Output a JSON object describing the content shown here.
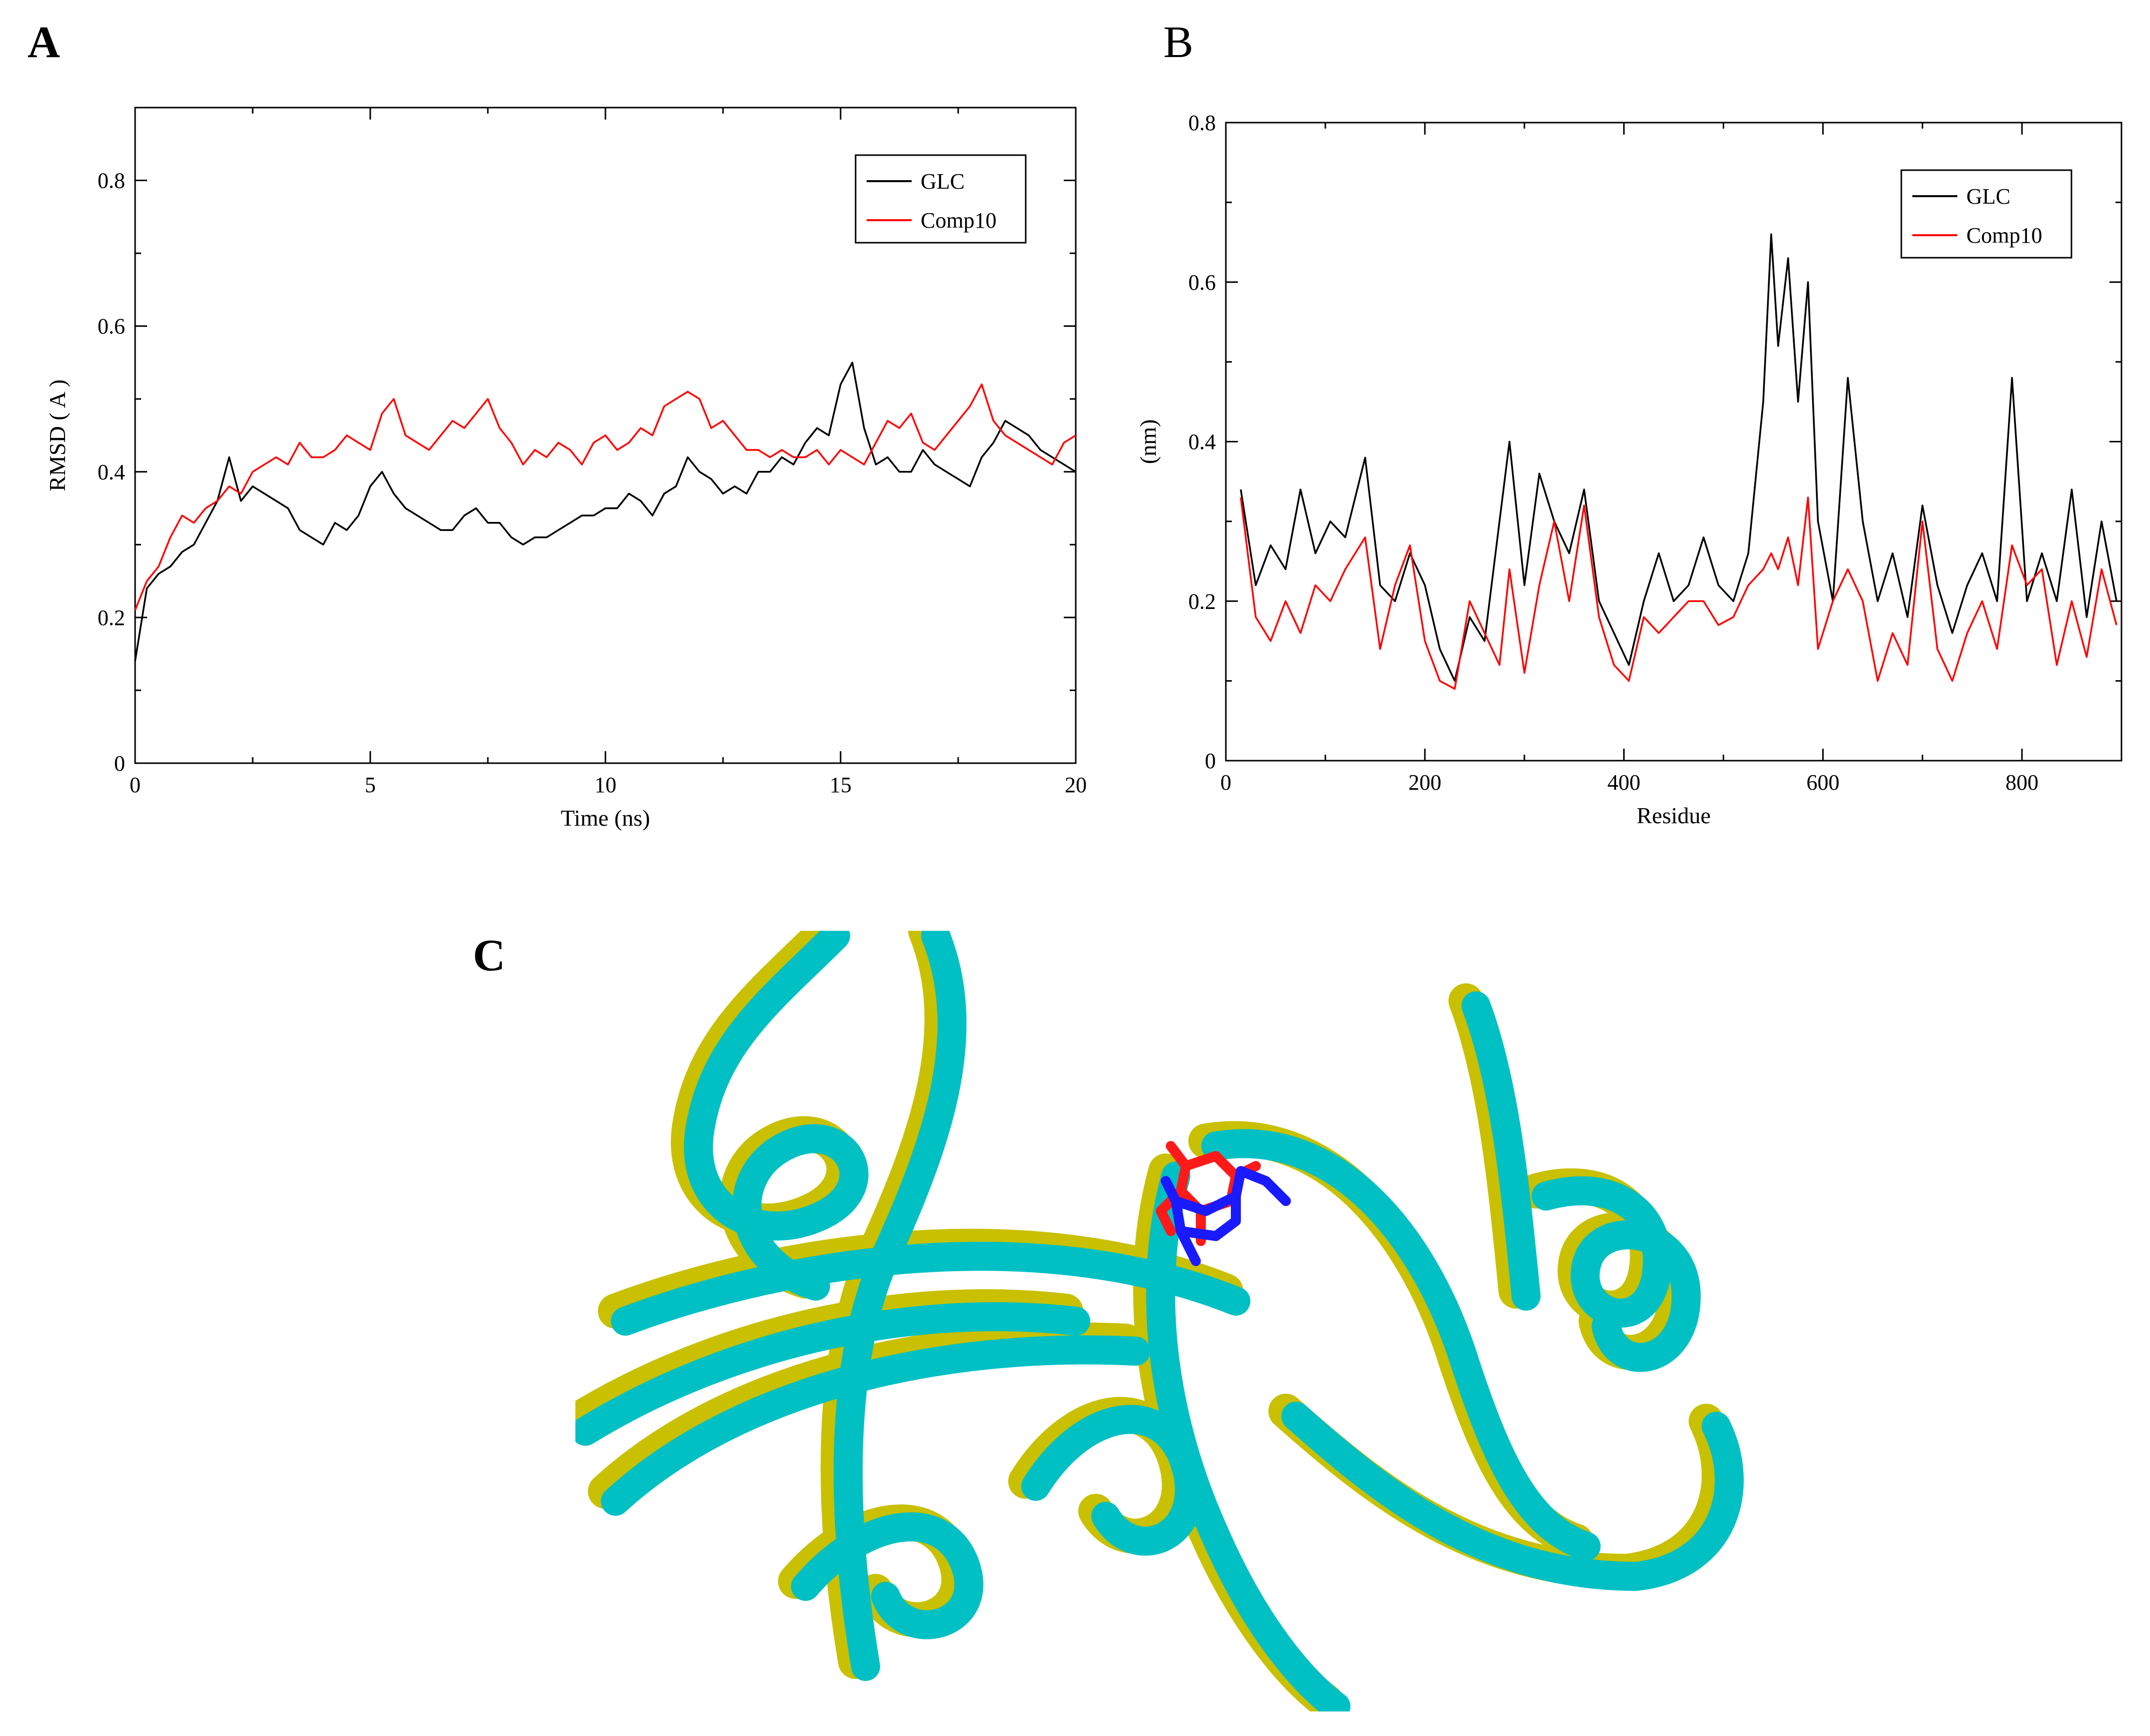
{
  "panels": {
    "a_label": "A",
    "b_label": "B",
    "c_label": "C"
  },
  "colors": {
    "glc": "#000000",
    "comp10": "#ff0000",
    "protein_a": "#00c0c4",
    "protein_b": "#c8c000",
    "ligand_a": "#ff1a1a",
    "ligand_b": "#1a1aff"
  },
  "chart_data": [
    {
      "type": "line",
      "panel": "A",
      "title": "",
      "xlabel": "Time (ns)",
      "ylabel": "RMSD ( A )",
      "xlim": [
        0,
        20
      ],
      "ylim": [
        0,
        0.9
      ],
      "xticks": [
        0,
        5,
        10,
        15,
        20
      ],
      "xtick_labels": [
        "0",
        "5",
        "10",
        "15",
        "20"
      ],
      "yticks": [
        0,
        0.2,
        0.4,
        0.6,
        0.8
      ],
      "ytick_labels": [
        "0",
        "0.2",
        "0.4",
        "0.6",
        "0.8"
      ],
      "grid": false,
      "legend": "top-right",
      "series": [
        {
          "name": "GLC",
          "color": "#000000",
          "x": [
            0,
            0.25,
            0.5,
            0.75,
            1,
            1.25,
            1.5,
            1.75,
            2,
            2.25,
            2.5,
            2.75,
            3,
            3.25,
            3.5,
            3.75,
            4,
            4.25,
            4.5,
            4.75,
            5,
            5.25,
            5.5,
            5.75,
            6,
            6.25,
            6.5,
            6.75,
            7,
            7.25,
            7.5,
            7.75,
            8,
            8.25,
            8.5,
            8.75,
            9,
            9.25,
            9.5,
            9.75,
            10,
            10.25,
            10.5,
            10.75,
            11,
            11.25,
            11.5,
            11.75,
            12,
            12.25,
            12.5,
            12.75,
            13,
            13.25,
            13.5,
            13.75,
            14,
            14.25,
            14.5,
            14.75,
            15,
            15.25,
            15.5,
            15.75,
            16,
            16.25,
            16.5,
            16.75,
            17,
            17.25,
            17.5,
            17.75,
            18,
            18.25,
            18.5,
            18.75,
            19,
            19.25,
            19.5,
            19.75,
            20
          ],
          "y": [
            0.14,
            0.24,
            0.26,
            0.27,
            0.29,
            0.3,
            0.33,
            0.36,
            0.42,
            0.36,
            0.38,
            0.37,
            0.36,
            0.35,
            0.32,
            0.31,
            0.3,
            0.33,
            0.32,
            0.34,
            0.38,
            0.4,
            0.37,
            0.35,
            0.34,
            0.33,
            0.32,
            0.32,
            0.34,
            0.35,
            0.33,
            0.33,
            0.31,
            0.3,
            0.31,
            0.31,
            0.32,
            0.33,
            0.34,
            0.34,
            0.35,
            0.35,
            0.37,
            0.36,
            0.34,
            0.37,
            0.38,
            0.42,
            0.4,
            0.39,
            0.37,
            0.38,
            0.37,
            0.4,
            0.4,
            0.42,
            0.41,
            0.44,
            0.46,
            0.45,
            0.52,
            0.55,
            0.46,
            0.41,
            0.42,
            0.4,
            0.4,
            0.43,
            0.41,
            0.4,
            0.39,
            0.38,
            0.42,
            0.44,
            0.47,
            0.46,
            0.45,
            0.43,
            0.42,
            0.41,
            0.4
          ]
        },
        {
          "name": "Comp10",
          "color": "#ff0000",
          "x": [
            0,
            0.25,
            0.5,
            0.75,
            1,
            1.25,
            1.5,
            1.75,
            2,
            2.25,
            2.5,
            2.75,
            3,
            3.25,
            3.5,
            3.75,
            4,
            4.25,
            4.5,
            4.75,
            5,
            5.25,
            5.5,
            5.75,
            6,
            6.25,
            6.5,
            6.75,
            7,
            7.25,
            7.5,
            7.75,
            8,
            8.25,
            8.5,
            8.75,
            9,
            9.25,
            9.5,
            9.75,
            10,
            10.25,
            10.5,
            10.75,
            11,
            11.25,
            11.5,
            11.75,
            12,
            12.25,
            12.5,
            12.75,
            13,
            13.25,
            13.5,
            13.75,
            14,
            14.25,
            14.5,
            14.75,
            15,
            15.25,
            15.5,
            15.75,
            16,
            16.25,
            16.5,
            16.75,
            17,
            17.25,
            17.5,
            17.75,
            18,
            18.25,
            18.5,
            18.75,
            19,
            19.25,
            19.5,
            19.75,
            20
          ],
          "y": [
            0.21,
            0.25,
            0.27,
            0.31,
            0.34,
            0.33,
            0.35,
            0.36,
            0.38,
            0.37,
            0.4,
            0.41,
            0.42,
            0.41,
            0.44,
            0.42,
            0.42,
            0.43,
            0.45,
            0.44,
            0.43,
            0.48,
            0.5,
            0.45,
            0.44,
            0.43,
            0.45,
            0.47,
            0.46,
            0.48,
            0.5,
            0.46,
            0.44,
            0.41,
            0.43,
            0.42,
            0.44,
            0.43,
            0.41,
            0.44,
            0.45,
            0.43,
            0.44,
            0.46,
            0.45,
            0.49,
            0.5,
            0.51,
            0.5,
            0.46,
            0.47,
            0.45,
            0.43,
            0.43,
            0.42,
            0.43,
            0.42,
            0.42,
            0.43,
            0.41,
            0.43,
            0.42,
            0.41,
            0.44,
            0.47,
            0.46,
            0.48,
            0.44,
            0.43,
            0.45,
            0.47,
            0.49,
            0.52,
            0.47,
            0.45,
            0.44,
            0.43,
            0.42,
            0.41,
            0.44,
            0.45
          ]
        }
      ]
    },
    {
      "type": "line",
      "panel": "B",
      "title": "",
      "xlabel": "Residue",
      "ylabel": "(nm)",
      "xlim": [
        0,
        900
      ],
      "ylim": [
        0,
        0.8
      ],
      "xticks": [
        0,
        200,
        400,
        600,
        800
      ],
      "xtick_labels": [
        "0",
        "200",
        "400",
        "600",
        "800"
      ],
      "yticks": [
        0,
        0.2,
        0.4,
        0.6,
        0.8
      ],
      "ytick_labels": [
        "0",
        "0.2",
        "0.4",
        "0.6",
        "0.8"
      ],
      "grid": false,
      "legend": "top-right",
      "series": [
        {
          "name": "GLC",
          "color": "#000000",
          "x": [
            15,
            30,
            45,
            60,
            75,
            90,
            105,
            120,
            140,
            155,
            170,
            185,
            200,
            215,
            230,
            245,
            260,
            275,
            285,
            300,
            315,
            330,
            345,
            360,
            375,
            390,
            405,
            420,
            435,
            450,
            465,
            480,
            495,
            510,
            525,
            540,
            548,
            555,
            565,
            575,
            585,
            595,
            610,
            625,
            640,
            655,
            670,
            685,
            700,
            715,
            730,
            745,
            760,
            775,
            790,
            805,
            820,
            835,
            850,
            865,
            880,
            895
          ],
          "y": [
            0.34,
            0.22,
            0.27,
            0.24,
            0.34,
            0.26,
            0.3,
            0.28,
            0.38,
            0.22,
            0.2,
            0.26,
            0.22,
            0.14,
            0.1,
            0.18,
            0.15,
            0.3,
            0.4,
            0.22,
            0.36,
            0.3,
            0.26,
            0.34,
            0.2,
            0.16,
            0.12,
            0.2,
            0.26,
            0.2,
            0.22,
            0.28,
            0.22,
            0.2,
            0.26,
            0.45,
            0.66,
            0.52,
            0.63,
            0.45,
            0.6,
            0.3,
            0.2,
            0.48,
            0.3,
            0.2,
            0.26,
            0.18,
            0.32,
            0.22,
            0.16,
            0.22,
            0.26,
            0.2,
            0.48,
            0.2,
            0.26,
            0.2,
            0.34,
            0.18,
            0.3,
            0.2
          ]
        },
        {
          "name": "Comp10",
          "color": "#ff0000",
          "x": [
            15,
            30,
            45,
            60,
            75,
            90,
            105,
            120,
            140,
            155,
            170,
            185,
            200,
            215,
            230,
            245,
            260,
            275,
            285,
            300,
            315,
            330,
            345,
            360,
            375,
            390,
            405,
            420,
            435,
            450,
            465,
            480,
            495,
            510,
            525,
            540,
            548,
            555,
            565,
            575,
            585,
            595,
            610,
            625,
            640,
            655,
            670,
            685,
            700,
            715,
            730,
            745,
            760,
            775,
            790,
            805,
            820,
            835,
            850,
            865,
            880,
            895
          ],
          "y": [
            0.33,
            0.18,
            0.15,
            0.2,
            0.16,
            0.22,
            0.2,
            0.24,
            0.28,
            0.14,
            0.22,
            0.27,
            0.15,
            0.1,
            0.09,
            0.2,
            0.16,
            0.12,
            0.24,
            0.11,
            0.22,
            0.3,
            0.2,
            0.32,
            0.18,
            0.12,
            0.1,
            0.18,
            0.16,
            0.18,
            0.2,
            0.2,
            0.17,
            0.18,
            0.22,
            0.24,
            0.26,
            0.24,
            0.28,
            0.22,
            0.33,
            0.14,
            0.2,
            0.24,
            0.2,
            0.1,
            0.16,
            0.12,
            0.3,
            0.14,
            0.1,
            0.16,
            0.2,
            0.14,
            0.27,
            0.22,
            0.24,
            0.12,
            0.2,
            0.13,
            0.24,
            0.17
          ]
        }
      ]
    }
  ]
}
